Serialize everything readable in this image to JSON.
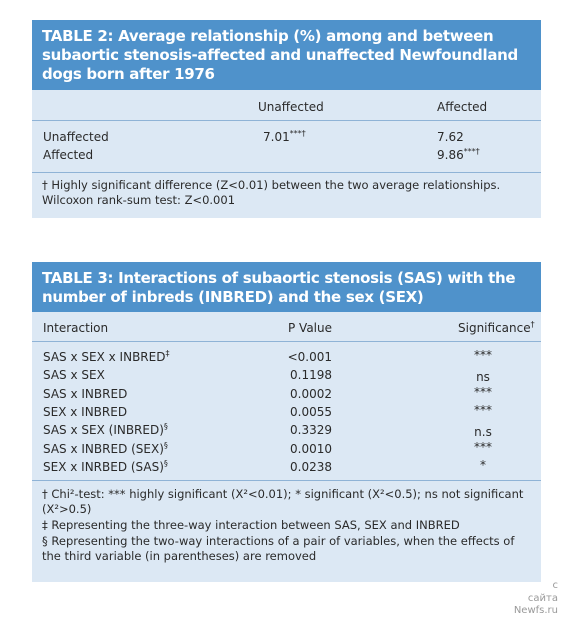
{
  "table2": {
    "title": "TABLE 2: Average relationship (%) among and between subaortic stenosis-affected and unaffected Newfoundland dogs born after 1976",
    "columns": [
      "Unaffected",
      "Affected"
    ],
    "rows": [
      {
        "label": "Unaffected",
        "unaffected": {
          "text": "7.01",
          "sup": "***†"
        },
        "affected": {
          "text": "7.62"
        }
      },
      {
        "label": "Affected",
        "affected": {
          "text": "9.86",
          "sup": "***†"
        }
      }
    ],
    "footnote": "† Highly significant difference (Z<0.01) between the two average relationships. Wilcoxon rank-sum test: Z<0.001"
  },
  "table3": {
    "title": "TABLE 3: Interactions of subaortic stenosis (SAS) with the number of inbreds (INBRED) and the sex (SEX)",
    "columns": [
      {
        "text": "Interaction"
      },
      {
        "text": "P Value"
      },
      {
        "text": "Significance",
        "sup": "†"
      }
    ],
    "rows": [
      {
        "interaction": "SAS x SEX x INBRED",
        "sup": "‡",
        "p": "<0.001",
        "significance": "***"
      },
      {
        "interaction": "SAS x SEX",
        "p": "0.1198",
        "significance": "ns"
      },
      {
        "interaction": "SAS x INBRED",
        "p": "0.0002",
        "significance": "***"
      },
      {
        "interaction": "SEX x INBRED",
        "p": "0.0055",
        "significance": "***"
      },
      {
        "interaction": "SAS x SEX (INBRED)",
        "sup": "§",
        "p": "0.3329",
        "significance": "n.s"
      },
      {
        "interaction": "SAS x INBRED (SEX)",
        "sup": "§",
        "p": "0.0010",
        "significance": "***"
      },
      {
        "interaction": "SEX x INRBED (SAS)",
        "sup": "§",
        "p": "0.0238",
        "significance": "*"
      }
    ],
    "footnotes": [
      "† Chi²-test: *** highly significant (X²<0.01); * significant (X²<0.5); ns not significant (X²>0.5)",
      "‡ Representing the three-way interaction between SAS, SEX and INBRED",
      "§ Representing the two-way interactions of a pair of variables, when the effects of the third variable (in parentheses) are removed"
    ]
  },
  "watermark": [
    "с",
    "сайта",
    "Newfs.ru"
  ]
}
